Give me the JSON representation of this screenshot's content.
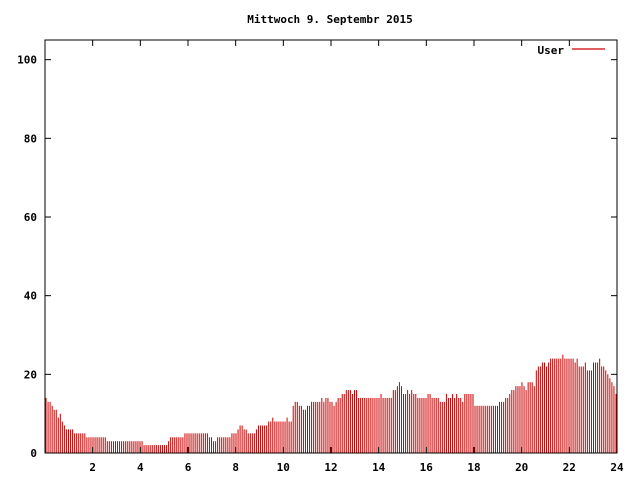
{
  "chart_data": {
    "type": "bar",
    "title": "Mittwoch 9. Septembr 2015",
    "xlabel": "",
    "ylabel": "",
    "xlim": [
      0,
      24
    ],
    "ylim": [
      0,
      105
    ],
    "grid": false,
    "legend_position": "top-right",
    "x_ticks": [
      "2",
      "4",
      "6",
      "8",
      "10",
      "12",
      "14",
      "16",
      "18",
      "20",
      "22",
      "24"
    ],
    "y_ticks": [
      "0",
      "20",
      "40",
      "60",
      "80",
      "100"
    ],
    "x_tick_values": [
      2,
      4,
      6,
      8,
      10,
      12,
      14,
      16,
      18,
      20,
      22,
      24
    ],
    "y_tick_values": [
      0,
      20,
      40,
      60,
      80,
      100
    ],
    "color": "#cc0000",
    "series": [
      {
        "name": "User",
        "values": [
          14,
          13,
          13,
          12,
          11,
          11,
          9,
          10,
          8,
          7,
          6,
          6,
          6,
          6,
          5,
          5,
          5,
          5,
          5,
          5,
          4,
          4,
          4,
          4,
          4,
          4,
          4,
          4,
          4,
          4,
          3,
          3,
          3,
          3,
          3,
          3,
          3,
          3,
          3,
          3,
          3,
          3,
          3,
          3,
          3,
          3,
          3,
          3,
          2,
          2,
          2,
          2,
          2,
          2,
          2,
          2,
          2,
          2,
          2,
          2,
          3,
          4,
          4,
          4,
          4,
          4,
          4,
          4,
          5,
          5,
          5,
          5,
          5,
          5,
          5,
          5,
          5,
          5,
          5,
          5,
          4,
          4,
          3,
          3,
          4,
          4,
          4,
          4,
          4,
          4,
          4,
          5,
          5,
          5,
          6,
          7,
          7,
          6,
          6,
          5,
          5,
          5,
          5,
          6,
          7,
          7,
          7,
          7,
          7,
          8,
          8,
          9,
          8,
          8,
          8,
          8,
          8,
          8,
          9,
          8,
          8,
          12,
          13,
          13,
          12,
          12,
          11,
          11,
          12,
          12,
          13,
          13,
          13,
          13,
          13,
          14,
          13,
          14,
          14,
          13,
          13,
          12,
          13,
          14,
          14,
          15,
          15,
          16,
          16,
          16,
          15,
          16,
          16,
          14,
          14,
          14,
          14,
          14,
          14,
          14,
          14,
          14,
          14,
          14,
          15,
          14,
          14,
          14,
          14,
          14,
          16,
          16,
          17,
          18,
          17,
          15,
          15,
          16,
          15,
          16,
          15,
          15,
          14,
          14,
          14,
          14,
          14,
          15,
          15,
          14,
          14,
          14,
          14,
          13,
          13,
          13,
          15,
          14,
          14,
          15,
          14,
          15,
          14,
          14,
          13,
          15,
          15,
          15,
          15,
          15,
          12,
          12,
          12,
          12,
          12,
          12,
          12,
          12,
          12,
          12,
          12,
          12,
          13,
          13,
          13,
          14,
          14,
          15,
          16,
          16,
          17,
          17,
          17,
          18,
          17,
          16,
          18,
          18,
          18,
          17,
          21,
          22,
          22,
          23,
          23,
          22,
          23,
          24,
          24,
          24,
          24,
          24,
          24,
          25,
          24,
          24,
          24,
          24,
          24,
          23,
          24,
          22,
          22,
          22,
          23,
          21,
          21,
          21,
          23,
          23,
          23,
          24,
          22,
          22,
          21,
          20,
          19,
          18,
          17,
          15
        ]
      }
    ]
  }
}
